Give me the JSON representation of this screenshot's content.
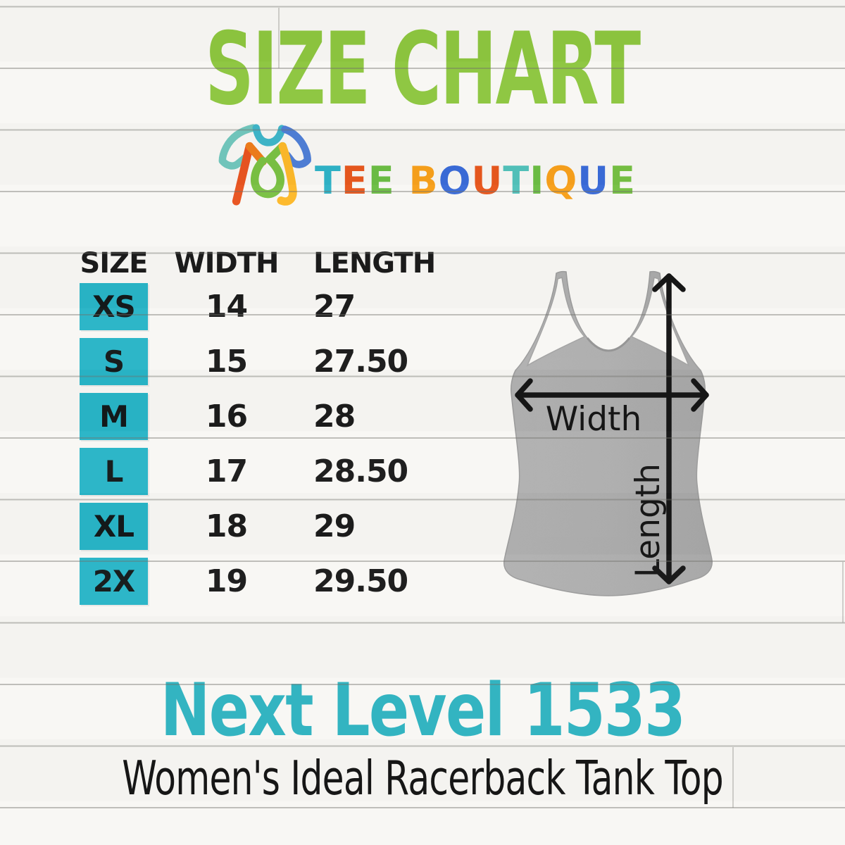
{
  "title": {
    "text": "SIZE CHART"
  },
  "brand": {
    "name": "TEE BOUTIQUE",
    "letters": [
      {
        "ch": "T",
        "color": "#2fb3c7"
      },
      {
        "ch": "E",
        "color": "#e8571d"
      },
      {
        "ch": "E",
        "color": "#6cbe44"
      },
      {
        "ch": " ",
        "color": "#000000"
      },
      {
        "ch": "B",
        "color": "#f8a01b"
      },
      {
        "ch": "O",
        "color": "#3a6bd8"
      },
      {
        "ch": "U",
        "color": "#e8571d"
      },
      {
        "ch": "T",
        "color": "#52c2bb"
      },
      {
        "ch": "I",
        "color": "#6cbe44"
      },
      {
        "ch": "Q",
        "color": "#f8a01b"
      },
      {
        "ch": "U",
        "color": "#3a6bd8"
      },
      {
        "ch": "E",
        "color": "#76c043"
      }
    ]
  },
  "chart_data": {
    "type": "table",
    "title": "SIZE CHART",
    "columns": [
      "SIZE",
      "WIDTH",
      "LENGTH"
    ],
    "rows": [
      [
        "XS",
        14,
        27
      ],
      [
        "S",
        15,
        27.5
      ],
      [
        "M",
        16,
        28
      ],
      [
        "L",
        17,
        28.5
      ],
      [
        "XL",
        18,
        29
      ],
      [
        "2X",
        19,
        29.5
      ]
    ]
  },
  "table": {
    "headers": [
      "SIZE",
      "WIDTH",
      "LENGTH"
    ],
    "rows": [
      {
        "size": "XS",
        "width": "14",
        "length": "27"
      },
      {
        "size": "S",
        "width": "15",
        "length": "27.50"
      },
      {
        "size": "M",
        "width": "16",
        "length": "28"
      },
      {
        "size": "L",
        "width": "17",
        "length": "28.50"
      },
      {
        "size": "XL",
        "width": "18",
        "length": "29"
      },
      {
        "size": "2X",
        "width": "19",
        "length": "29.50"
      }
    ]
  },
  "diagram": {
    "width_label": "Width",
    "length_label": "Length"
  },
  "product": {
    "name": "Next Level 1533",
    "description": "Women's Ideal Racerback Tank Top"
  },
  "colors": {
    "title_green": "#8dc63f",
    "table_cell_teal": "#29b5c7",
    "product_teal": "#2fb3c0",
    "tank_gray": "#ababab",
    "text_black": "#1b1b1b"
  }
}
